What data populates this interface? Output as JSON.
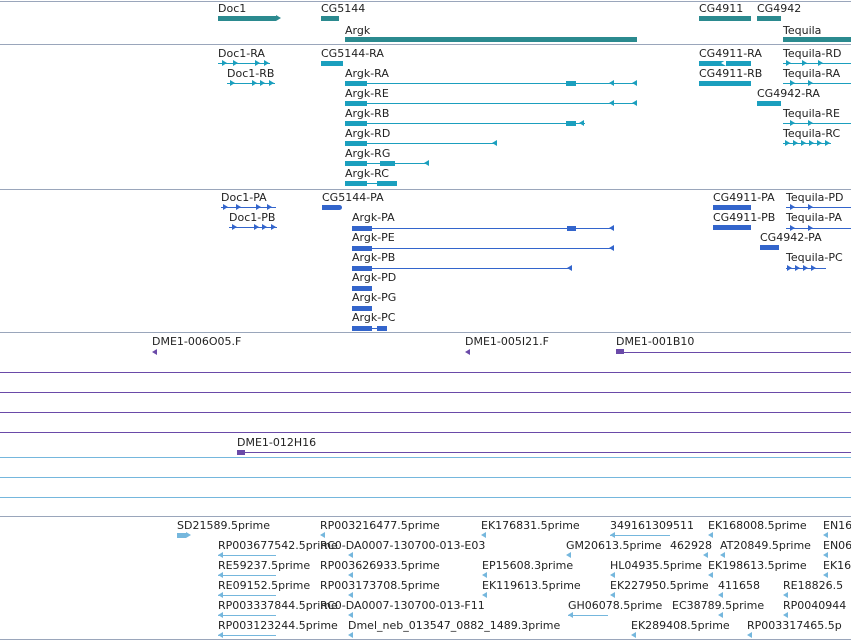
{
  "colors": {
    "gene": "#2b8a8f",
    "transcript": "#1b9fbe",
    "protein": "#3365cc",
    "clone": "#6a4aa8",
    "est": "#75b7dd",
    "separator": "#9aa6bb"
  },
  "tracks": {
    "genes": {
      "labels": [
        "Doc1",
        "CG5144",
        "Argk",
        "CG4911",
        "CG4942",
        "Tequila"
      ]
    },
    "transcripts": {
      "labels": [
        "Doc1-RA",
        "Doc1-RB",
        "CG5144-RA",
        "Argk-RA",
        "Argk-RE",
        "Argk-RB",
        "Argk-RD",
        "Argk-RG",
        "Argk-RC",
        "CG4911-RA",
        "CG4911-RB",
        "CG4942-RA",
        "Tequila-RD",
        "Tequila-RA",
        "Tequila-RE",
        "Tequila-RC"
      ]
    },
    "proteins": {
      "labels": [
        "Doc1-PA",
        "Doc1-PB",
        "CG5144-PA",
        "Argk-PA",
        "Argk-PE",
        "Argk-PB",
        "Argk-PD",
        "Argk-PG",
        "Argk-PC",
        "CG4911-PA",
        "CG4911-PB",
        "CG4942-PA",
        "Tequila-PD",
        "Tequila-PA",
        "Tequila-PC"
      ]
    },
    "clones": {
      "labels": [
        "DME1-006O05.F",
        "DME1-005I21.F",
        "DME1-001B10",
        "DME1-012H16"
      ]
    },
    "ests": {
      "row1": [
        "SD21589.5prime",
        "RP003216477.5prime",
        "EK176831.5prime",
        "349161309511",
        "EK168008.5prime",
        "EN16"
      ],
      "row2": [
        "RP003677542.5prime",
        "RC0-DA0007-130700-013-E03",
        "GM20613.5prime",
        "462928",
        "AT20849.5prime",
        "EN06"
      ],
      "row3": [
        "RE59237.5prime",
        "RP003626933.5prime",
        "EP15608.3prime",
        "HL04935.5prime",
        "EK198613.5prime",
        "EK16"
      ],
      "row4": [
        "RE09152.5prime",
        "RP003173708.5prime",
        "EK119613.5prime",
        "EK227950.5prime",
        "411658",
        "RE18826.5"
      ],
      "row5": [
        "RP003337844.5prime",
        "RC0-DA0007-130700-013-F11",
        "GH06078.5prime",
        "EC38789.5prime",
        "RP0040944"
      ],
      "row6": [
        "RP003123244.5prime",
        "Dmel_neb_013547_0882_1489.3prime",
        "EK289408.5prime",
        "RP003317465.5p"
      ]
    }
  }
}
